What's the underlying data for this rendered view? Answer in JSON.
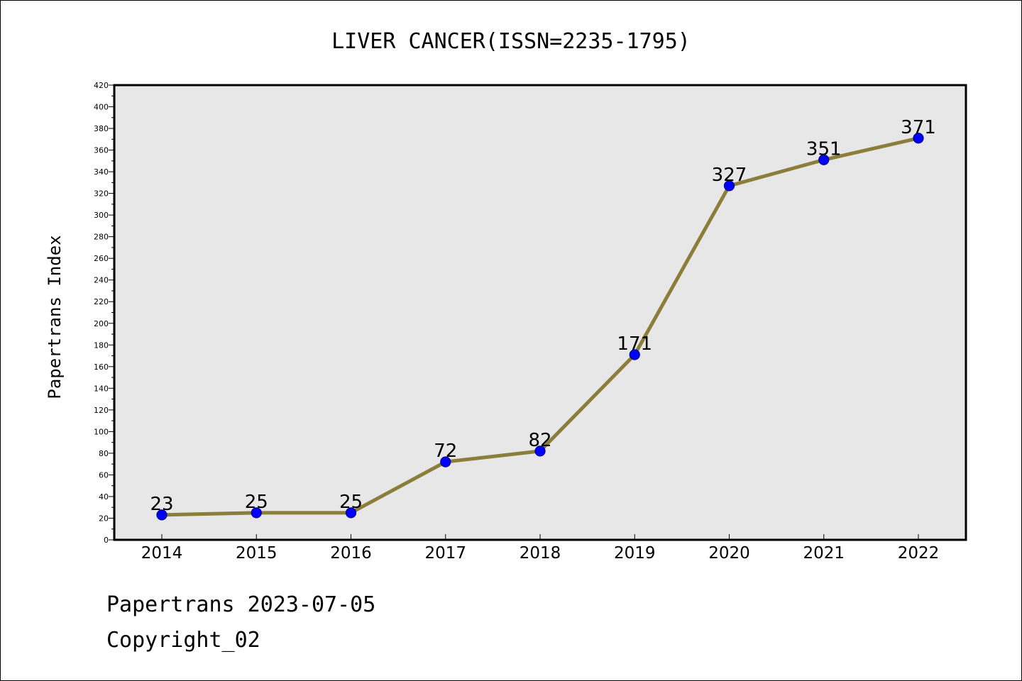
{
  "chart_data": {
    "type": "line",
    "title": "LIVER CANCER(ISSN=2235-1795)",
    "xlabel": "",
    "ylabel": "Papertrans Index",
    "categories": [
      "2014",
      "2015",
      "2016",
      "2017",
      "2018",
      "2019",
      "2020",
      "2021",
      "2022"
    ],
    "series": [
      {
        "values": [
          23,
          25,
          25,
          72,
          82,
          171,
          327,
          351,
          371
        ]
      }
    ],
    "data_labels": [
      "23",
      "25",
      "25",
      "72",
      "82",
      "171",
      "327",
      "351",
      "371"
    ],
    "ylim": [
      0,
      420
    ],
    "y_ticks": [
      "0",
      "20",
      "40",
      "60",
      "80",
      "100",
      "120",
      "140",
      "160",
      "180",
      "200",
      "220",
      "240",
      "260",
      "280",
      "300",
      "320",
      "340",
      "360",
      "380",
      "400",
      "420"
    ],
    "grid": false,
    "legend": "none"
  },
  "footer": {
    "line1": "Papertrans 2023-07-05",
    "line2": "Copyright_02"
  },
  "colors": {
    "plot_background": "#e7e7e7",
    "line": "#8b7d3a",
    "marker_fill": "#0000ff",
    "marker_edge": "#00008b",
    "axes": "#000000"
  }
}
